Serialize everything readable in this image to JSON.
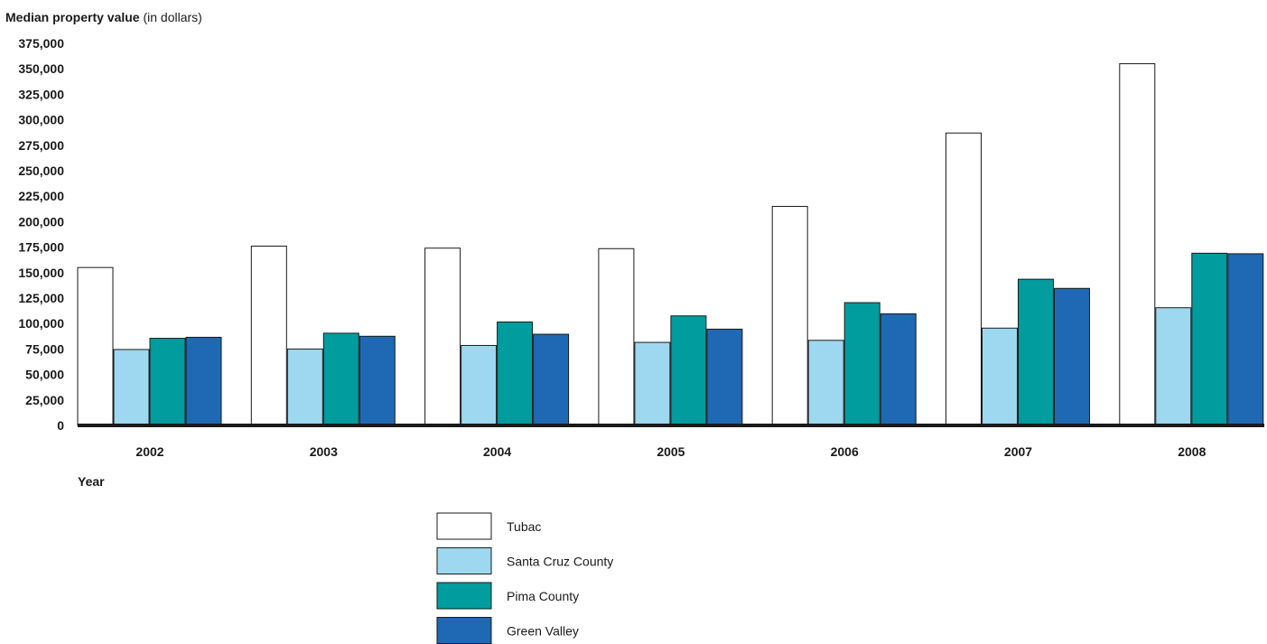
{
  "chart_data": {
    "type": "bar",
    "title": "Median property value",
    "title_suffix": "(in dollars)",
    "xlabel": "Year",
    "ylabel": "",
    "ylim": [
      0,
      375000
    ],
    "yticks": [
      "0",
      "25,000",
      "50,000",
      "75,000",
      "100,000",
      "125,000",
      "150,000",
      "175,000",
      "200,000",
      "225,000",
      "250,000",
      "275,000",
      "300,000",
      "325,000",
      "350,000",
      "375,000"
    ],
    "categories": [
      "2002",
      "2003",
      "2004",
      "2005",
      "2006",
      "2007",
      "2008"
    ],
    "series": [
      {
        "name": "Tubac",
        "color": "#ffffff",
        "values": [
          155000,
          176000,
          174000,
          173500,
          215000,
          287000,
          355000
        ]
      },
      {
        "name": "Santa Cruz County",
        "color": "#9dd8f0",
        "values": [
          74500,
          75000,
          78500,
          81500,
          83500,
          95500,
          115500
        ]
      },
      {
        "name": "Pima County",
        "color": "#009c9e",
        "values": [
          85500,
          90500,
          101500,
          107500,
          120500,
          143500,
          169000
        ]
      },
      {
        "name": "Green Valley",
        "color": "#1f68b3",
        "values": [
          86500,
          87500,
          89500,
          94500,
          109500,
          134500,
          168500
        ]
      }
    ],
    "grid": false,
    "legend": "bottom-center"
  }
}
